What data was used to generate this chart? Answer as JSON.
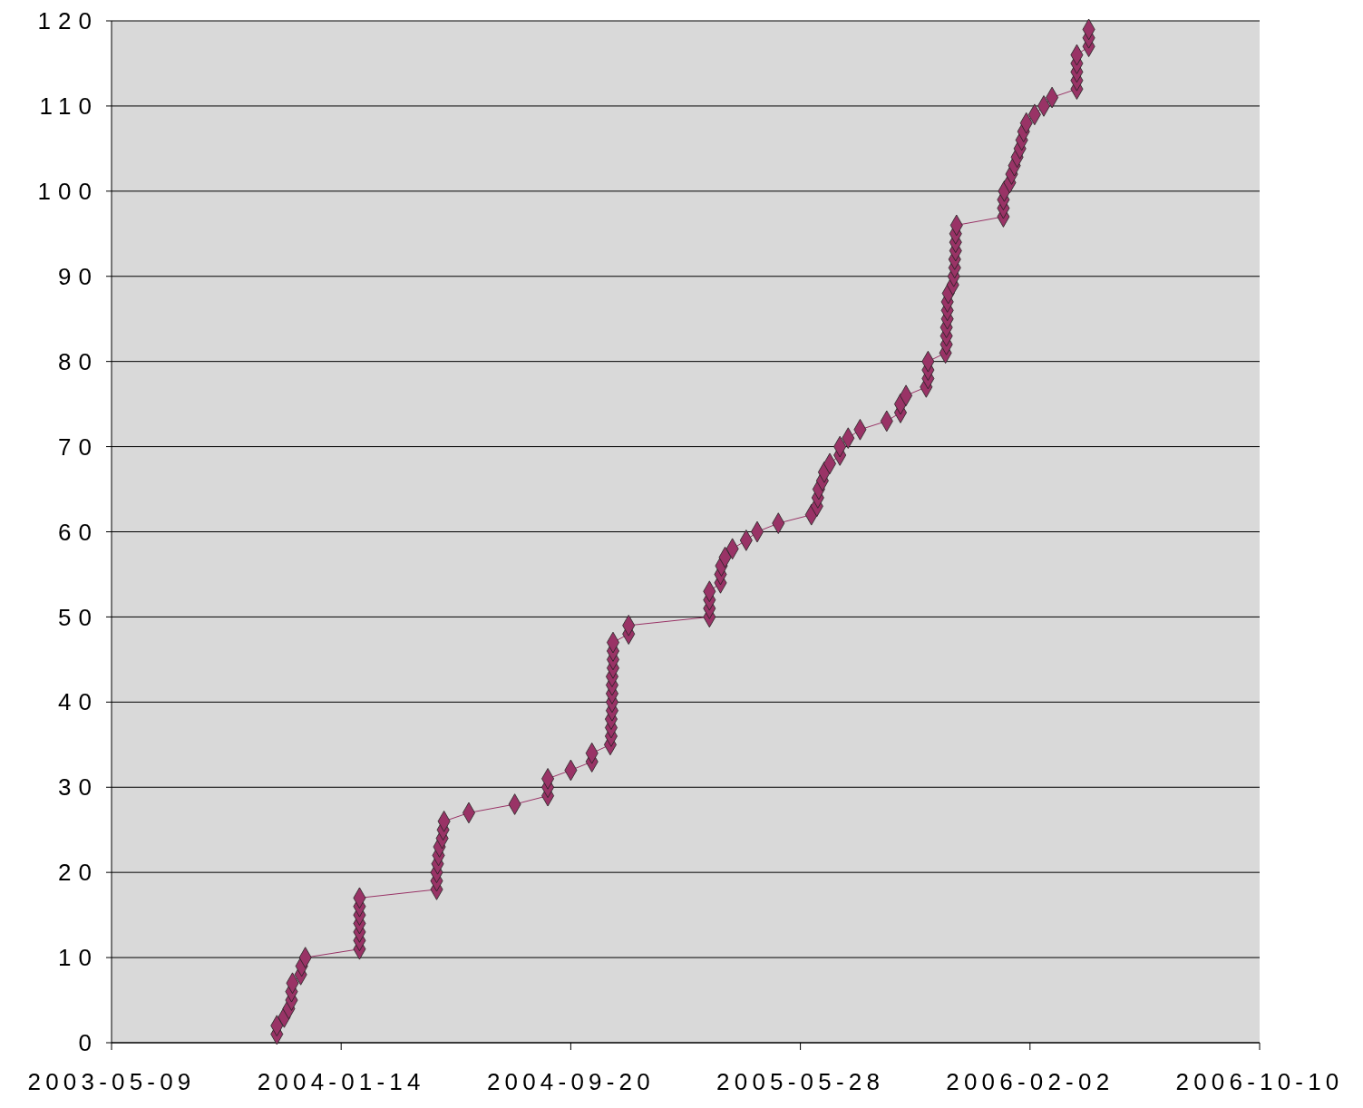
{
  "chart_data": {
    "type": "line",
    "marker": "diamond",
    "line_style": "solid",
    "grid": "y",
    "xlim": [
      "2003-05-09",
      "2006-10-10"
    ],
    "xticks": [
      "2003-05-09",
      "2004-01-14",
      "2004-09-20",
      "2005-05-28",
      "2006-02-02",
      "2006-10-10"
    ],
    "ylim": [
      0,
      120
    ],
    "yticks": [
      0,
      10,
      20,
      30,
      40,
      50,
      60,
      70,
      80,
      90,
      100,
      110,
      120
    ],
    "x": [
      "2003-11-05",
      "2003-11-05",
      "2003-11-13",
      "2003-11-18",
      "2003-11-21",
      "2003-11-21",
      "2003-11-22",
      "2003-12-01",
      "2003-12-02",
      "2003-12-06",
      "2004-02-03",
      "2004-02-03",
      "2004-02-03",
      "2004-02-03",
      "2004-02-03",
      "2004-02-03",
      "2004-02-03",
      "2004-04-27",
      "2004-04-27",
      "2004-04-27",
      "2004-04-28",
      "2004-04-29",
      "2004-04-30",
      "2004-05-03",
      "2004-05-04",
      "2004-05-05",
      "2004-06-01",
      "2004-07-21",
      "2004-08-26",
      "2004-08-26",
      "2004-08-26",
      "2004-09-20",
      "2004-10-13",
      "2004-10-13",
      "2004-11-02",
      "2004-11-03",
      "2004-11-03",
      "2004-11-03",
      "2004-11-04",
      "2004-11-04",
      "2004-11-04",
      "2004-11-04",
      "2004-11-04",
      "2004-11-05",
      "2004-11-05",
      "2004-11-05",
      "2004-11-05",
      "2004-11-22",
      "2004-11-22",
      "2005-02-18",
      "2005-02-18",
      "2005-02-18",
      "2005-02-18",
      "2005-03-02",
      "2005-03-02",
      "2005-03-03",
      "2005-03-07",
      "2005-03-15",
      "2005-03-30",
      "2005-04-11",
      "2005-05-04",
      "2005-06-09",
      "2005-06-15",
      "2005-06-16",
      "2005-06-17",
      "2005-06-21",
      "2005-06-23",
      "2005-06-29",
      "2005-07-10",
      "2005-07-10",
      "2005-07-19",
      "2005-08-01",
      "2005-08-30",
      "2005-09-14",
      "2005-09-14",
      "2005-09-20",
      "2005-10-12",
      "2005-10-14",
      "2005-10-14",
      "2005-10-14",
      "2005-11-02",
      "2005-11-03",
      "2005-11-03",
      "2005-11-03",
      "2005-11-04",
      "2005-11-04",
      "2005-11-04",
      "2005-11-05",
      "2005-11-10",
      "2005-11-11",
      "2005-11-12",
      "2005-11-12",
      "2005-11-13",
      "2005-11-13",
      "2005-11-13",
      "2005-11-14",
      "2006-01-04",
      "2006-01-04",
      "2006-01-04",
      "2006-01-05",
      "2006-01-11",
      "2006-01-13",
      "2006-01-16",
      "2006-01-19",
      "2006-01-22",
      "2006-01-24",
      "2006-01-26",
      "2006-01-29",
      "2006-02-07",
      "2006-02-17",
      "2006-02-26",
      "2006-03-25",
      "2006-03-25",
      "2006-03-25",
      "2006-03-25",
      "2006-03-25",
      "2006-04-07",
      "2006-04-07",
      "2006-04-07"
    ],
    "series": [
      {
        "color": "#993366",
        "values": [
          1,
          2,
          3,
          4,
          5,
          6,
          7,
          8,
          9,
          10,
          11,
          12,
          13,
          14,
          15,
          16,
          17,
          18,
          19,
          20,
          21,
          22,
          23,
          24,
          25,
          26,
          27,
          28,
          29,
          30,
          31,
          32,
          33,
          34,
          35,
          36,
          37,
          38,
          39,
          40,
          41,
          42,
          43,
          44,
          45,
          46,
          47,
          48,
          49,
          50,
          51,
          52,
          53,
          54,
          55,
          56,
          57,
          58,
          59,
          60,
          61,
          62,
          63,
          64,
          65,
          66,
          67,
          68,
          69,
          70,
          71,
          72,
          73,
          74,
          75,
          76,
          77,
          78,
          79,
          80,
          81,
          82,
          83,
          84,
          85,
          86,
          87,
          88,
          89,
          90,
          91,
          92,
          93,
          94,
          95,
          96,
          97,
          98,
          99,
          100,
          101,
          102,
          103,
          104,
          105,
          106,
          107,
          108,
          109,
          110,
          111,
          112,
          113,
          114,
          115,
          116,
          117,
          118,
          119
        ]
      }
    ]
  }
}
